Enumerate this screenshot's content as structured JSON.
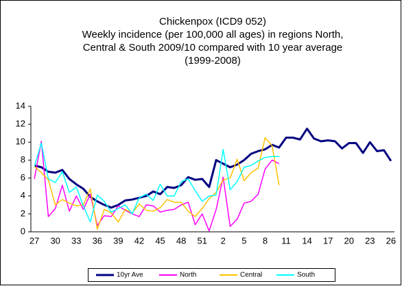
{
  "chart_data": {
    "type": "line",
    "title": [
      "Chickenpox (ICD9 052)",
      "Weekly incidence (per 100,000 all ages) in regions North,",
      "Central & South 2009/10 compared with 10 year average",
      "(1999-2008)"
    ],
    "categories": [
      "27",
      null,
      null,
      "30",
      null,
      null,
      "33",
      null,
      null,
      "36",
      null,
      null,
      "39",
      null,
      null,
      "42",
      null,
      null,
      "45",
      null,
      null,
      "48",
      null,
      null,
      "51",
      null,
      null,
      "2",
      null,
      null,
      "5",
      null,
      null,
      "8",
      null,
      null,
      "11",
      null,
      null,
      "14",
      null,
      null,
      "17",
      null,
      null,
      "20",
      null,
      null,
      "23",
      null,
      null,
      "26"
    ],
    "ylim": [
      0,
      14
    ],
    "yticks": [
      0,
      2,
      4,
      6,
      8,
      10,
      12,
      14
    ],
    "series": [
      {
        "name": "10yr Ave",
        "color": "#000080",
        "values": [
          7.4,
          7.2,
          6.7,
          6.6,
          6.9,
          5.9,
          5.3,
          4.8,
          3.9,
          3.4,
          3.0,
          2.7,
          3.0,
          3.5,
          3.6,
          3.8,
          4.0,
          4.5,
          4.2,
          5.0,
          4.9,
          5.2,
          6.1,
          5.8,
          5.9,
          5.0,
          8.0,
          7.6,
          7.2,
          7.5,
          8.0,
          8.7,
          9.0,
          9.2,
          9.7,
          9.4,
          10.5,
          10.5,
          10.3,
          11.5,
          10.4,
          10.1,
          10.2,
          10.1,
          9.3,
          9.9,
          9.9,
          8.8,
          10.0,
          9.0,
          9.1,
          7.9
        ]
      },
      {
        "name": "North",
        "color": "#ff00ff",
        "values": [
          5.9,
          10.1,
          1.7,
          2.6,
          5.2,
          2.3,
          4.0,
          2.5,
          4.2,
          0.7,
          1.8,
          1.7,
          2.9,
          2.4,
          2.0,
          1.7,
          3.0,
          2.9,
          2.2,
          2.4,
          2.5,
          3.0,
          3.3,
          0.8,
          2.0,
          0.1,
          2.5,
          6.1,
          0.6,
          1.4,
          3.2,
          3.4,
          4.2,
          7.0,
          8.0,
          7.6,
          null,
          null,
          null,
          null,
          null,
          null,
          null,
          null,
          null,
          null,
          null,
          null,
          null,
          null,
          null,
          null
        ]
      },
      {
        "name": "Central",
        "color": "#ffc000",
        "values": [
          7.3,
          6.6,
          5.8,
          3.0,
          3.6,
          3.2,
          2.9,
          3.0,
          4.8,
          0.3,
          2.5,
          2.1,
          1.1,
          2.5,
          2.1,
          3.1,
          2.4,
          2.3,
          2.7,
          3.6,
          3.3,
          3.3,
          2.3,
          1.7,
          2.6,
          3.7,
          4.4,
          5.8,
          6.0,
          8.1,
          5.7,
          6.6,
          7.1,
          10.5,
          9.6,
          5.2,
          null,
          null,
          null,
          null,
          null,
          null,
          null,
          null,
          null,
          null,
          null,
          null,
          null,
          null,
          null,
          null
        ]
      },
      {
        "name": "South",
        "color": "#00ffff",
        "values": [
          7.3,
          9.9,
          5.9,
          5.5,
          6.7,
          4.4,
          5.0,
          2.9,
          1.1,
          4.1,
          3.4,
          2.2,
          2.6,
          3.0,
          2.0,
          3.8,
          4.2,
          3.5,
          5.3,
          4.0,
          4.0,
          5.6,
          5.9,
          4.6,
          3.4,
          4.0,
          4.1,
          9.2,
          4.7,
          5.6,
          7.2,
          7.4,
          7.9,
          8.3,
          8.4,
          8.4,
          null,
          null,
          null,
          null,
          null,
          null,
          null,
          null,
          null,
          null,
          null,
          null,
          null,
          null,
          null,
          null
        ]
      }
    ]
  }
}
